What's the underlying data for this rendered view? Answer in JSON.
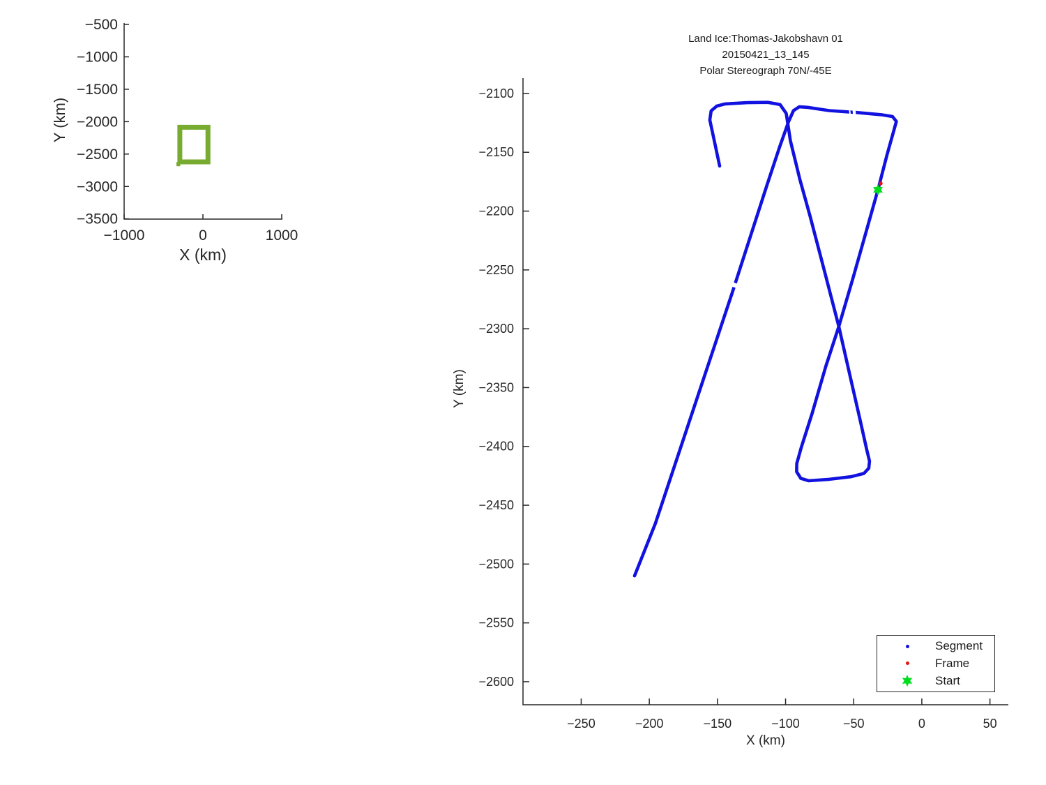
{
  "figure": {
    "background": "#ffffff"
  },
  "colors": {
    "axis": "#262626",
    "segment_blue": "#1212e0",
    "frame_red": "#ea1010",
    "start_green": "#00dd1d",
    "coverage_green": "#77ac30",
    "gap_white": "#ffffff"
  },
  "chart_data": [
    {
      "id": "overview-map",
      "type": "line",
      "title": "",
      "xlabel": "X (km)",
      "ylabel": "Y (km)",
      "xlim": [
        -1000,
        1000
      ],
      "ylim": [
        -500,
        -3500
      ],
      "x_ticks": [
        -1000,
        0,
        1000
      ],
      "y_ticks": [
        -500,
        -1000,
        -1500,
        -2000,
        -2500,
        -3000,
        -3500
      ],
      "grid": false,
      "series": [
        {
          "name": "coverage-extent",
          "shape": "rectangle",
          "color": "#77ac30",
          "x": [
            -293,
            64
          ],
          "y": [
            -2086,
            -2620
          ],
          "tail": {
            "x": [
              -336,
              -288
            ],
            "y": -2655
          }
        }
      ]
    },
    {
      "id": "flight-track",
      "type": "line",
      "title_lines": [
        "Land Ice:Thomas-Jakobshavn 01",
        "20150421_13_145",
        "Polar Stereograph 70N/-45E"
      ],
      "xlabel": "X (km)",
      "ylabel": "Y (km)",
      "xlim": [
        -292.7,
        63.5
      ],
      "ylim": [
        -2087,
        -2619.6
      ],
      "x_ticks": [
        -250,
        -200,
        -150,
        -100,
        -50,
        0,
        50
      ],
      "y_ticks": [
        -2100,
        -2150,
        -2200,
        -2250,
        -2300,
        -2350,
        -2400,
        -2450,
        -2500,
        -2550,
        -2600
      ],
      "grid": false,
      "series": [
        {
          "name": "Segment",
          "style": "dotted-line",
          "color": "#1212e0",
          "points": [
            [
              -148.4,
              -2161.7
            ],
            [
              -152.5,
              -2139.1
            ],
            [
              -155.6,
              -2122.5
            ],
            [
              -154.6,
              -2114.8
            ],
            [
              -150.5,
              -2110.7
            ],
            [
              -144.3,
              -2108.9
            ],
            [
              -128,
              -2107.8
            ],
            [
              -113,
              -2107.6
            ],
            [
              -104,
              -2109.5
            ],
            [
              -99.5,
              -2117
            ],
            [
              -96.5,
              -2140
            ],
            [
              -89.5,
              -2173
            ],
            [
              -82,
              -2204.4
            ],
            [
              -71,
              -2253
            ],
            [
              -60.9,
              -2298.1
            ],
            [
              -52.3,
              -2342
            ],
            [
              -45.2,
              -2378
            ],
            [
              -40.4,
              -2403
            ],
            [
              -38.4,
              -2412.5
            ],
            [
              -38.9,
              -2418.5
            ],
            [
              -42.5,
              -2423
            ],
            [
              -52,
              -2425.8
            ],
            [
              -68,
              -2428
            ],
            [
              -83,
              -2429.2
            ],
            [
              -88.8,
              -2427.2
            ],
            [
              -91.9,
              -2421.5
            ],
            [
              -91.8,
              -2414.5
            ],
            [
              -88.5,
              -2401
            ],
            [
              -80.5,
              -2372
            ],
            [
              -70.5,
              -2332
            ],
            [
              -60.9,
              -2298.1
            ],
            [
              -50.5,
              -2257
            ],
            [
              -40.5,
              -2216
            ],
            [
              -32.2,
              -2181.9
            ],
            [
              -25.5,
              -2152
            ],
            [
              -20.3,
              -2130.5
            ],
            [
              -18.7,
              -2123.8
            ],
            [
              -21.5,
              -2119.6
            ],
            [
              -29,
              -2118.2
            ],
            [
              -48,
              -2116.2
            ],
            [
              -68,
              -2114.6
            ],
            [
              -84,
              -2111.8
            ],
            [
              -90,
              -2111.4
            ],
            [
              -94.2,
              -2114.6
            ],
            [
              -97.7,
              -2123.7
            ],
            [
              -104.5,
              -2146
            ],
            [
              -113.6,
              -2177.7
            ],
            [
              -139.2,
              -2269.6
            ],
            [
              -169.9,
              -2376.4
            ],
            [
              -195.5,
              -2465.4
            ],
            [
              -210.8,
              -2510
            ]
          ]
        },
        {
          "name": "Frame",
          "style": "dot",
          "color": "#ea1010",
          "points": [
            [
              -30.2,
              -2176.5
            ]
          ]
        },
        {
          "name": "Start",
          "style": "star",
          "color": "#00dd1d",
          "points": [
            [
              -32.2,
              -2181.9
            ]
          ]
        }
      ],
      "line_gaps": [
        [
          [
            -53.3,
            -2116.2
          ],
          [
            -52.3,
            -2116.1
          ]
        ],
        [
          [
            -50.7,
            -2116.0
          ],
          [
            -48.5,
            -2115.8
          ]
        ],
        [
          [
            -137.3,
            -2261.0
          ],
          [
            -138.3,
            -2264.6
          ]
        ]
      ],
      "legend": {
        "position": "bottom-right",
        "entries": [
          {
            "label": "Segment",
            "marker": "dot",
            "color": "#1212e0"
          },
          {
            "label": "Frame",
            "marker": "dot",
            "color": "#ea1010"
          },
          {
            "label": "Start",
            "marker": "star",
            "color": "#00dd1d"
          }
        ]
      }
    }
  ]
}
